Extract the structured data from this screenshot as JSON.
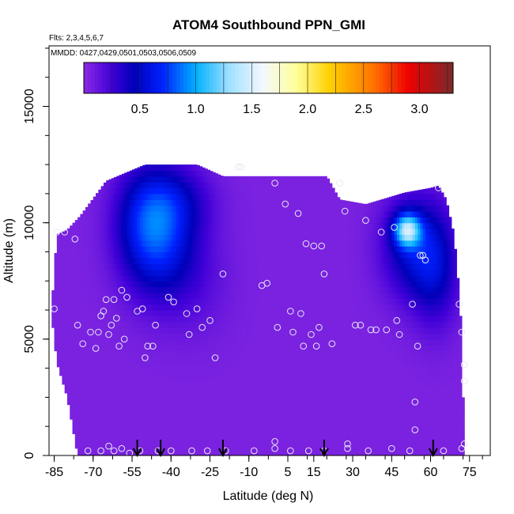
{
  "chart_data": {
    "type": "heatmap",
    "title": "ATOM4 Southbound PPN_GMI",
    "subtitle_flights": "Flts: 2,3,4,5,6,7",
    "subtitle_dates": "MMDD: 0427,0429,0501,0503,0506,0509",
    "xlabel": "Latitude (deg N)",
    "ylabel": "Altitude (m)",
    "xlim": [
      -87,
      83
    ],
    "ylim": [
      0,
      17600
    ],
    "x_ticks": [
      -85,
      -70,
      -55,
      -40,
      -25,
      -10,
      5,
      15,
      30,
      45,
      60,
      75
    ],
    "x_tick_labels": [
      "-85",
      "-70",
      "-55",
      "-40",
      "-25",
      "-10",
      "5",
      "15",
      "30",
      "45",
      "60",
      "75"
    ],
    "y_ticks": [
      0,
      5000,
      10000,
      15000
    ],
    "y_tick_labels": [
      "0",
      "5000",
      "10000",
      "15000"
    ],
    "colorbar": {
      "min": 0.0,
      "max": 3.3,
      "ticks": [
        0.5,
        1.0,
        1.5,
        2.0,
        2.5,
        3.0
      ],
      "tick_labels": [
        "0.5",
        "1.0",
        "1.5",
        "2.0",
        "2.5",
        "3.0"
      ],
      "stops": [
        {
          "v": 0.0,
          "c": "#8a2be2"
        },
        {
          "v": 0.25,
          "c": "#4000d8"
        },
        {
          "v": 0.45,
          "c": "#0000b8"
        },
        {
          "v": 0.7,
          "c": "#0020ff"
        },
        {
          "v": 1.0,
          "c": "#00b0ff"
        },
        {
          "v": 1.3,
          "c": "#a0e0ff"
        },
        {
          "v": 1.6,
          "c": "#f4f8ff"
        },
        {
          "v": 1.9,
          "c": "#ffff99"
        },
        {
          "v": 2.2,
          "c": "#ffd000"
        },
        {
          "v": 2.6,
          "c": "#ff7000"
        },
        {
          "v": 2.9,
          "c": "#ee0000"
        },
        {
          "v": 3.3,
          "c": "#7a2a2a"
        }
      ]
    },
    "base_value": 0.05,
    "envelope": [
      {
        "lat": -86,
        "alt": 6300
      },
      {
        "lat": -84,
        "alt": 9500
      },
      {
        "lat": -80,
        "alt": 9700
      },
      {
        "lat": -75,
        "alt": 10300
      },
      {
        "lat": -65,
        "alt": 11800
      },
      {
        "lat": -50,
        "alt": 12500
      },
      {
        "lat": -30,
        "alt": 12500
      },
      {
        "lat": -20,
        "alt": 12000
      },
      {
        "lat": 5,
        "alt": 12000
      },
      {
        "lat": 20,
        "alt": 12000
      },
      {
        "lat": 25,
        "alt": 11000
      },
      {
        "lat": 35,
        "alt": 10800
      },
      {
        "lat": 50,
        "alt": 11300
      },
      {
        "lat": 60,
        "alt": 11500
      },
      {
        "lat": 63,
        "alt": 11600
      },
      {
        "lat": 66,
        "alt": 11000
      },
      {
        "lat": 69,
        "alt": 9500
      },
      {
        "lat": 71,
        "alt": 7000
      },
      {
        "lat": 72,
        "alt": 5000
      },
      {
        "lat": 73,
        "alt": 0
      }
    ],
    "bottom_envelope": [
      {
        "lat": -86,
        "alt": 6000
      },
      {
        "lat": -84,
        "alt": 4000
      },
      {
        "lat": -80,
        "alt": 2500
      },
      {
        "lat": -76,
        "alt": 0
      }
    ],
    "features": [
      {
        "lat": -44,
        "alt": 9200,
        "value": 0.5,
        "sx": 14,
        "sy": 2500
      },
      {
        "lat": -50,
        "alt": 10200,
        "value": 0.35,
        "sx": 12,
        "sy": 2400
      },
      {
        "lat": -38,
        "alt": 11000,
        "value": 0.25,
        "sx": 14,
        "sy": 1500
      },
      {
        "lat": -30,
        "alt": 7500,
        "value": 0.1,
        "sx": 14,
        "sy": 2500
      },
      {
        "lat": 51,
        "alt": 9700,
        "value": 1.0,
        "sx": 5,
        "sy": 700
      },
      {
        "lat": 53,
        "alt": 9000,
        "value": 0.45,
        "sx": 12,
        "sy": 2200
      },
      {
        "lat": 62,
        "alt": 8000,
        "value": 0.35,
        "sx": 9,
        "sy": 2500
      }
    ],
    "observations": [
      {
        "lat": -85,
        "alt": 6300
      },
      {
        "lat": -84,
        "alt": 9600
      },
      {
        "lat": -81,
        "alt": 9600
      },
      {
        "lat": -77,
        "alt": 9300
      },
      {
        "lat": -76,
        "alt": 5600
      },
      {
        "lat": -74,
        "alt": 4800
      },
      {
        "lat": -71,
        "alt": 5300
      },
      {
        "lat": -69,
        "alt": 4600
      },
      {
        "lat": -68,
        "alt": 5300
      },
      {
        "lat": -67,
        "alt": 6000
      },
      {
        "lat": -66,
        "alt": 6200
      },
      {
        "lat": -65,
        "alt": 6700
      },
      {
        "lat": -64,
        "alt": 5200
      },
      {
        "lat": -63,
        "alt": 5600
      },
      {
        "lat": -62,
        "alt": 6700
      },
      {
        "lat": -61,
        "alt": 5900
      },
      {
        "lat": -60,
        "alt": 4700
      },
      {
        "lat": -59,
        "alt": 7100
      },
      {
        "lat": -58,
        "alt": 5000
      },
      {
        "lat": -57,
        "alt": 6800
      },
      {
        "lat": -53,
        "alt": 6200
      },
      {
        "lat": -51,
        "alt": 6300
      },
      {
        "lat": -50,
        "alt": 4200
      },
      {
        "lat": -49,
        "alt": 4700
      },
      {
        "lat": -47,
        "alt": 4700
      },
      {
        "lat": -46,
        "alt": 5600
      },
      {
        "lat": -41,
        "alt": 6800
      },
      {
        "lat": -39,
        "alt": 6600
      },
      {
        "lat": -34,
        "alt": 6100
      },
      {
        "lat": -33,
        "alt": 5200
      },
      {
        "lat": -30,
        "alt": 6300
      },
      {
        "lat": -28,
        "alt": 5500
      },
      {
        "lat": -25,
        "alt": 5800
      },
      {
        "lat": -23,
        "alt": 4200
      },
      {
        "lat": -20,
        "alt": 7800
      },
      {
        "lat": -14,
        "alt": 12400
      },
      {
        "lat": -13,
        "alt": 12400
      },
      {
        "lat": -5,
        "alt": 7300
      },
      {
        "lat": -3,
        "alt": 7400
      },
      {
        "lat": 0,
        "alt": 11700
      },
      {
        "lat": 1,
        "alt": 5500
      },
      {
        "lat": 4,
        "alt": 10800
      },
      {
        "lat": 6,
        "alt": 6200
      },
      {
        "lat": 7,
        "alt": 5300
      },
      {
        "lat": 9,
        "alt": 10400
      },
      {
        "lat": 10,
        "alt": 6100
      },
      {
        "lat": 11,
        "alt": 4700
      },
      {
        "lat": 12,
        "alt": 9100
      },
      {
        "lat": 14,
        "alt": 5200
      },
      {
        "lat": 15,
        "alt": 9000
      },
      {
        "lat": 16,
        "alt": 4700
      },
      {
        "lat": 17,
        "alt": 5500
      },
      {
        "lat": 18,
        "alt": 9000
      },
      {
        "lat": 19,
        "alt": 7800
      },
      {
        "lat": 22,
        "alt": 4800
      },
      {
        "lat": 25,
        "alt": 11700
      },
      {
        "lat": 27,
        "alt": 10500
      },
      {
        "lat": 31,
        "alt": 5600
      },
      {
        "lat": 33,
        "alt": 5600
      },
      {
        "lat": 35,
        "alt": 10100
      },
      {
        "lat": 37,
        "alt": 5400
      },
      {
        "lat": 39,
        "alt": 5400
      },
      {
        "lat": 41,
        "alt": 9600
      },
      {
        "lat": 43,
        "alt": 5400
      },
      {
        "lat": 46,
        "alt": 9800
      },
      {
        "lat": 47,
        "alt": 5800
      },
      {
        "lat": 48,
        "alt": 5200
      },
      {
        "lat": 51,
        "alt": 9700
      },
      {
        "lat": 53,
        "alt": 6500
      },
      {
        "lat": 54,
        "alt": 2300
      },
      {
        "lat": 54,
        "alt": 1100
      },
      {
        "lat": 55,
        "alt": 4700
      },
      {
        "lat": 56,
        "alt": 8600
      },
      {
        "lat": 57,
        "alt": 8600
      },
      {
        "lat": 58,
        "alt": 8400
      },
      {
        "lat": 63,
        "alt": 11500
      },
      {
        "lat": 71,
        "alt": 6500
      },
      {
        "lat": 72,
        "alt": 5300
      },
      {
        "lat": 73,
        "alt": 3900
      },
      {
        "lat": 73,
        "alt": 3200
      },
      {
        "lat": 73,
        "alt": 500
      },
      {
        "lat": 72,
        "alt": 300
      },
      {
        "lat": -72,
        "alt": 200
      },
      {
        "lat": -67,
        "alt": 200
      },
      {
        "lat": -64,
        "alt": 400
      },
      {
        "lat": -62,
        "alt": 200
      },
      {
        "lat": -59,
        "alt": 300
      },
      {
        "lat": -56,
        "alt": 100
      },
      {
        "lat": -52,
        "alt": 200
      },
      {
        "lat": -45,
        "alt": 200
      },
      {
        "lat": -40,
        "alt": 200
      },
      {
        "lat": -32,
        "alt": 200
      },
      {
        "lat": -26,
        "alt": 200
      },
      {
        "lat": -19,
        "alt": 200
      },
      {
        "lat": -8,
        "alt": 200
      },
      {
        "lat": 0,
        "alt": 300
      },
      {
        "lat": 0,
        "alt": 600
      },
      {
        "lat": 6,
        "alt": 200
      },
      {
        "lat": 13,
        "alt": 200
      },
      {
        "lat": 19,
        "alt": 200
      },
      {
        "lat": 28,
        "alt": 300
      },
      {
        "lat": 28,
        "alt": 500
      },
      {
        "lat": 36,
        "alt": 200
      },
      {
        "lat": 45,
        "alt": 300
      },
      {
        "lat": 52,
        "alt": 200
      },
      {
        "lat": 65,
        "alt": 200
      }
    ],
    "arrow_markers_lat": [
      -53,
      -44,
      -20,
      19,
      61
    ]
  }
}
